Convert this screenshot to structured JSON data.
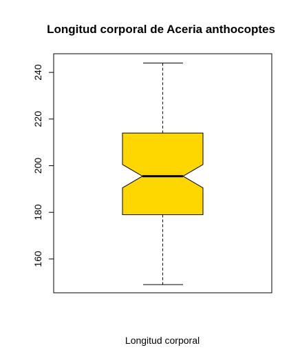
{
  "chart_data": {
    "type": "boxplot",
    "title": "Longitud corporal de  Aceria anthocoptes",
    "xlabel": "Longitud  corporal",
    "ylabel": "",
    "ylim": [
      145.5,
      248
    ],
    "yticks": [
      160,
      180,
      200,
      220,
      240
    ],
    "notched": true,
    "box_color": "#FFD700",
    "box": {
      "whisker_low": 149,
      "q1": 179,
      "median": 195.5,
      "q3": 214,
      "whisker_high": 244,
      "notch_low": 190.5,
      "notch_high": 200.5
    },
    "grid": false
  }
}
